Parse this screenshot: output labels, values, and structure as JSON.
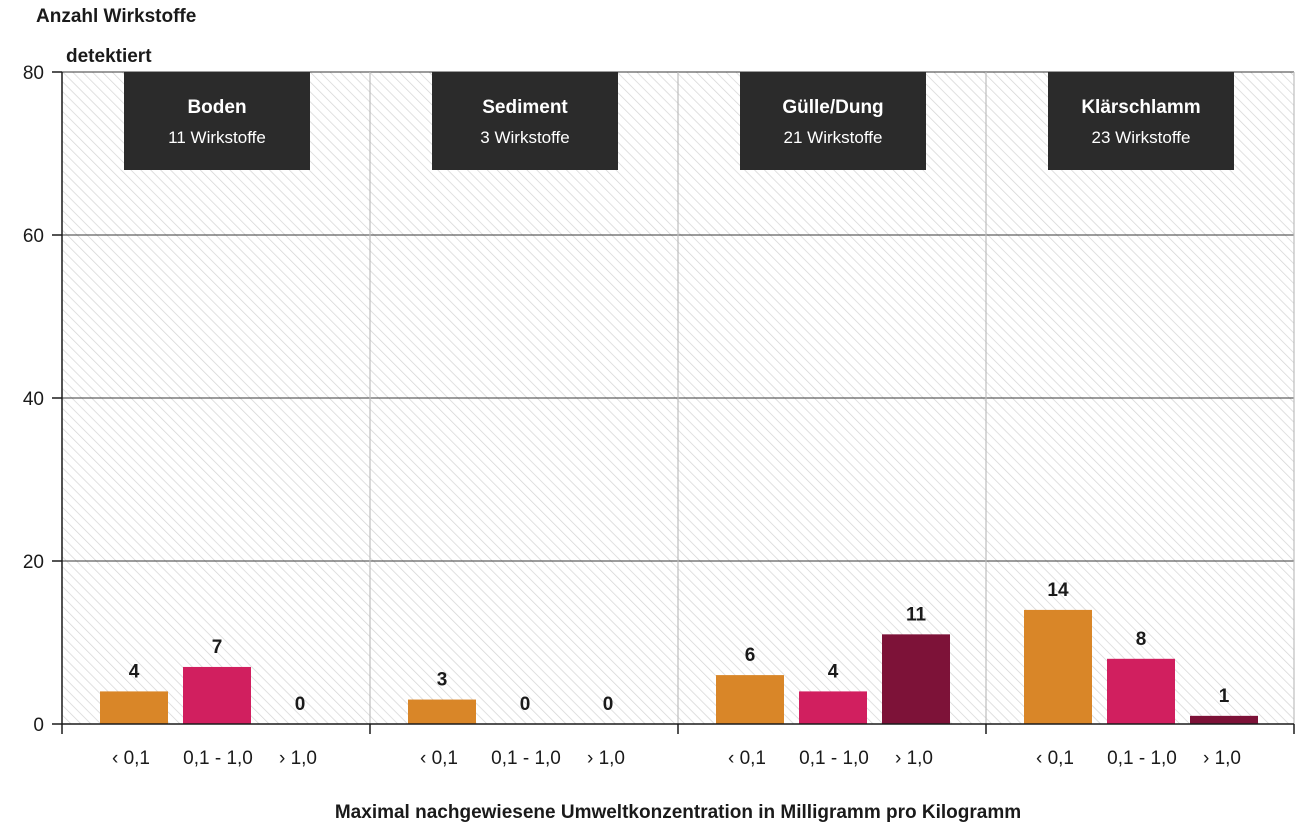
{
  "chart_data": {
    "type": "bar",
    "ylabel_line1": "Anzahl Wirkstoffe",
    "ylabel_line2": "detektiert",
    "xlabel": "Maximal nachgewiesene Umweltkonzentration in Milligramm pro Kilogramm",
    "ylim": [
      0,
      80
    ],
    "yticks": [
      "0",
      "20",
      "40",
      "60",
      "80"
    ],
    "grid": true,
    "categories": [
      "‹ 0,1",
      "0,1 - 1,0",
      "› 1,0"
    ],
    "series_colors": [
      "#d98628",
      "#d11f5f",
      "#7d1238"
    ],
    "panels": [
      {
        "title": "Boden",
        "subtitle": "11 Wirkstoffe",
        "values": [
          4,
          7,
          0
        ]
      },
      {
        "title": "Sediment",
        "subtitle": "3 Wirkstoffe",
        "values": [
          3,
          0,
          0
        ]
      },
      {
        "title": "Gülle/Dung",
        "subtitle": "21 Wirkstoffe",
        "values": [
          6,
          4,
          11
        ]
      },
      {
        "title": "Klärschlamm",
        "subtitle": "23 Wirkstoffe",
        "values": [
          14,
          8,
          1
        ]
      }
    ]
  }
}
